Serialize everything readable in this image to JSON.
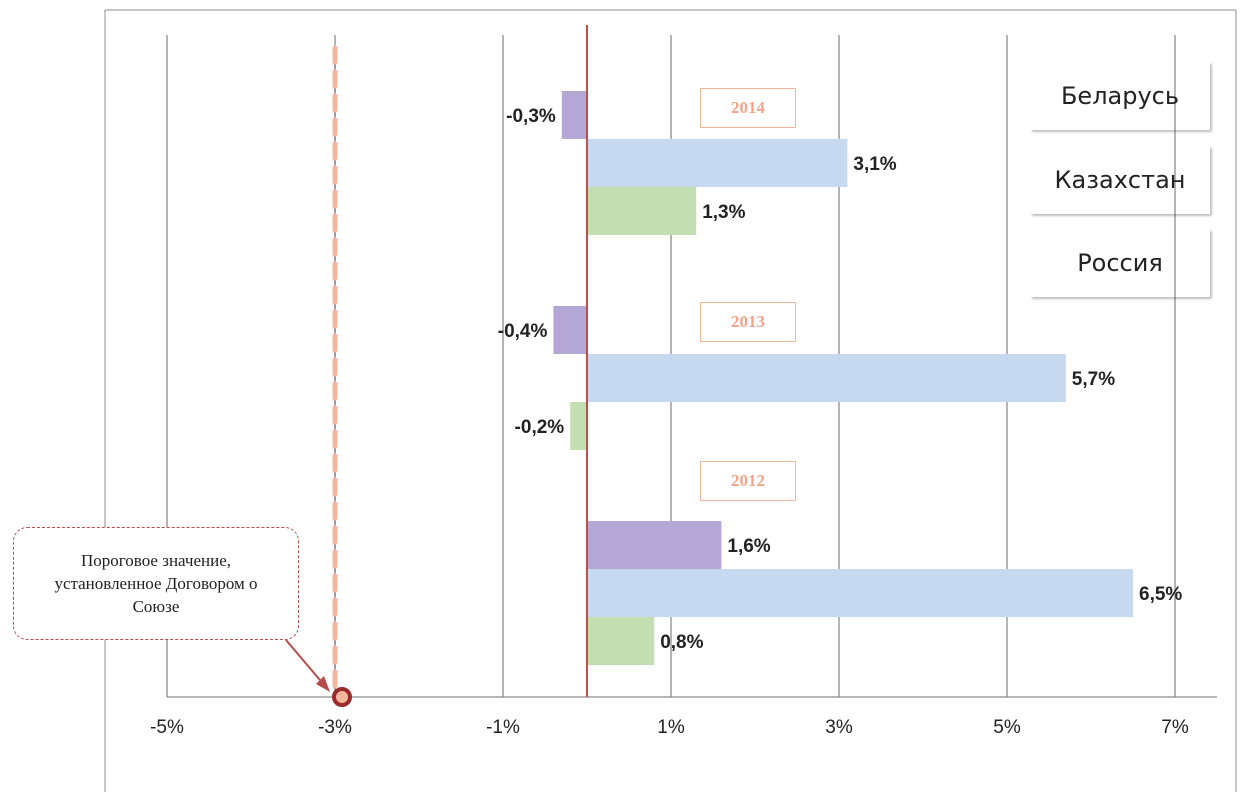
{
  "chart_data": {
    "type": "bar",
    "orientation": "horizontal",
    "xlim": [
      -5,
      7
    ],
    "x_ticks": [
      "-5%",
      "-3%",
      "-1%",
      "1%",
      "3%",
      "5%",
      "7%"
    ],
    "x_tick_values": [
      -5,
      -3,
      -1,
      1,
      3,
      5,
      7
    ],
    "grid": true,
    "legend_position": "top-right",
    "groups": [
      {
        "label": "2014",
        "bars": [
          {
            "series": "Россия",
            "value": -0.3,
            "label": "-0,3%"
          },
          {
            "series": "Казахстан",
            "value": 3.1,
            "label": "3,1%"
          },
          {
            "series": "Беларусь",
            "value": 1.3,
            "label": "1,3%"
          }
        ]
      },
      {
        "label": "2013",
        "bars": [
          {
            "series": "Россия",
            "value": -0.4,
            "label": "-0,4%"
          },
          {
            "series": "Казахстан",
            "value": 5.7,
            "label": "5,7%"
          },
          {
            "series": "Беларусь",
            "value": -0.2,
            "label": "-0,2%"
          }
        ]
      },
      {
        "label": "2012",
        "bars": [
          {
            "series": "Россия",
            "value": 1.6,
            "label": "1,6%"
          },
          {
            "series": "Казахстан",
            "value": 6.5,
            "label": "6,5%"
          },
          {
            "series": "Беларусь",
            "value": 0.8,
            "label": "0,8%"
          }
        ]
      }
    ],
    "legend": [
      {
        "name": "Беларусь",
        "color": "#c3deb0"
      },
      {
        "name": "Казахстан",
        "color": "#c6d9f0"
      },
      {
        "name": "Россия",
        "color": "#b4a7d6"
      }
    ],
    "threshold": {
      "value": -3,
      "annotation": "Пороговое значение, установленное Договором о Союзе",
      "line_color": "#f4b79e"
    },
    "zero_line_color": "#c0504d"
  }
}
